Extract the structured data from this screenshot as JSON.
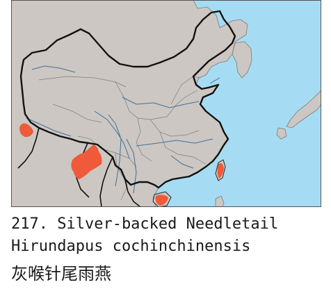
{
  "species": {
    "number_label": "217. Silver-backed Needletail",
    "scientific_name": "Hirundapus cochinchinensis",
    "chinese_name": "灰喉针尾雨燕"
  },
  "colors": {
    "sea": "#a6dcf3",
    "land": "#ccc7c2",
    "range": "#ef5a3a",
    "border": "#111111",
    "river": "#3f6f9a"
  }
}
